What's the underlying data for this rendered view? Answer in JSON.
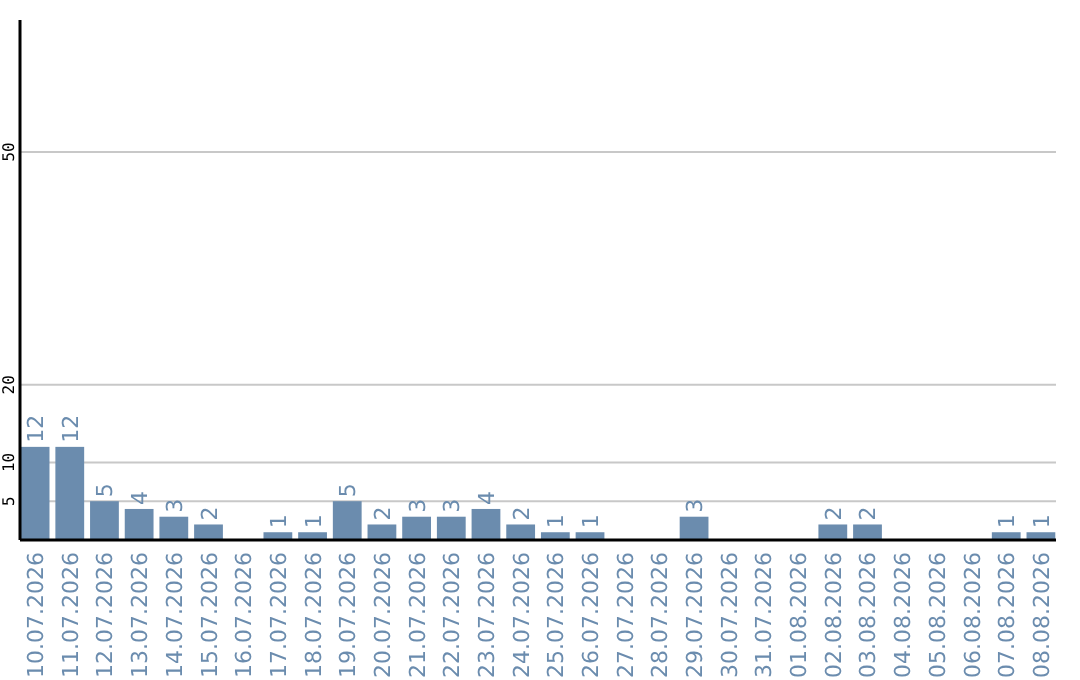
{
  "chart_data": {
    "type": "bar",
    "categories": [
      "10.07.2026",
      "11.07.2026",
      "12.07.2026",
      "13.07.2026",
      "14.07.2026",
      "15.07.2026",
      "16.07.2026",
      "17.07.2026",
      "18.07.2026",
      "19.07.2026",
      "20.07.2026",
      "21.07.2026",
      "22.07.2026",
      "23.07.2026",
      "24.07.2026",
      "25.07.2026",
      "26.07.2026",
      "27.07.2026",
      "28.07.2026",
      "29.07.2026",
      "30.07.2026",
      "31.07.2026",
      "01.08.2026",
      "02.08.2026",
      "03.08.2026",
      "04.08.2026",
      "05.08.2026",
      "06.08.2026",
      "07.08.2026",
      "08.08.2026"
    ],
    "values": [
      12,
      12,
      5,
      4,
      3,
      2,
      null,
      1,
      1,
      5,
      2,
      3,
      3,
      4,
      2,
      1,
      1,
      null,
      null,
      3,
      null,
      null,
      null,
      2,
      2,
      null,
      null,
      null,
      1,
      1
    ],
    "color": "#6b8cae",
    "ylim": [
      0,
      67
    ],
    "yticks": [
      5,
      10,
      20,
      50
    ],
    "grid": "y",
    "data_labels": true
  }
}
